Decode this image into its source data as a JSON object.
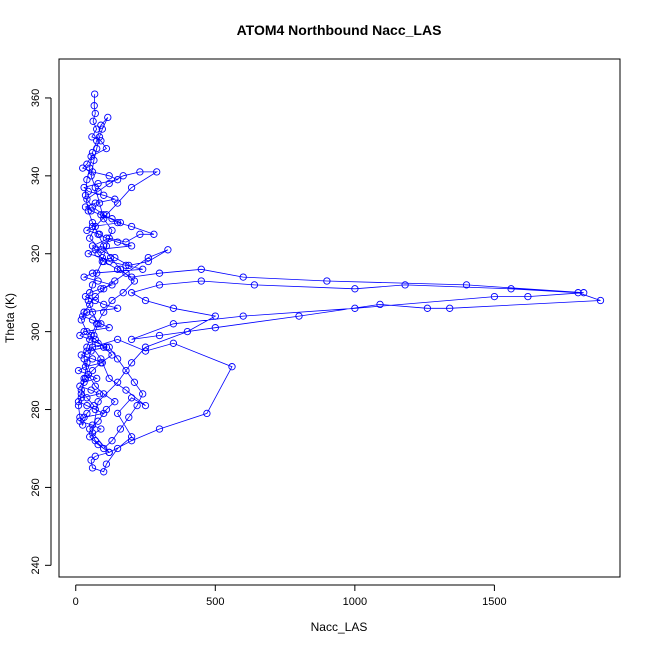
{
  "chart_data": {
    "type": "scatter",
    "title": "ATOM4 Northbound Nacc_LAS",
    "xlabel": "Nacc_LAS",
    "ylabel": "Theta (K)",
    "xlim": [
      -60,
      1950
    ],
    "ylim": [
      237,
      370
    ],
    "x_ticks": [
      0,
      500,
      1000,
      1500
    ],
    "y_ticks": [
      240,
      260,
      280,
      300,
      320,
      340,
      360
    ],
    "grid": false,
    "series_color": "#0000ff",
    "markers": "open-circle",
    "connected": true,
    "series": [
      {
        "points": [
          [
            68,
            361
          ],
          [
            66,
            358
          ],
          [
            70,
            356
          ],
          [
            62,
            354
          ],
          [
            75,
            352
          ],
          [
            58,
            350
          ],
          [
            90,
            349
          ],
          [
            110,
            347
          ],
          [
            55,
            345
          ],
          [
            40,
            343
          ],
          [
            25,
            342
          ],
          [
            60,
            341
          ],
          [
            120,
            340
          ],
          [
            150,
            339
          ],
          [
            80,
            338
          ],
          [
            30,
            337
          ],
          [
            45,
            336
          ],
          [
            100,
            335
          ],
          [
            140,
            334
          ],
          [
            70,
            333
          ],
          [
            35,
            332
          ],
          [
            55,
            331
          ],
          [
            90,
            330
          ],
          [
            130,
            329
          ],
          [
            160,
            328
          ],
          [
            60,
            327
          ],
          [
            40,
            326
          ],
          [
            85,
            325
          ],
          [
            110,
            324
          ],
          [
            150,
            323
          ],
          [
            200,
            322
          ],
          [
            70,
            321
          ],
          [
            45,
            320
          ],
          [
            95,
            319
          ],
          [
            120,
            318
          ],
          [
            180,
            317
          ],
          [
            240,
            316
          ],
          [
            60,
            315
          ],
          [
            30,
            314
          ],
          [
            80,
            313
          ],
          [
            130,
            312
          ],
          [
            90,
            311
          ],
          [
            50,
            310
          ],
          [
            35,
            309
          ],
          [
            70,
            308
          ],
          [
            100,
            307
          ],
          [
            150,
            306
          ],
          [
            40,
            305
          ],
          [
            25,
            304
          ],
          [
            60,
            303
          ],
          [
            90,
            302
          ],
          [
            120,
            301
          ],
          [
            30,
            300
          ],
          [
            15,
            299
          ],
          [
            50,
            298
          ],
          [
            80,
            297
          ],
          [
            110,
            296
          ],
          [
            40,
            295
          ],
          [
            20,
            294
          ],
          [
            60,
            293
          ],
          [
            95,
            292
          ],
          [
            35,
            291
          ],
          [
            10,
            290
          ],
          [
            45,
            289
          ],
          [
            75,
            288
          ],
          [
            30,
            287
          ],
          [
            15,
            286
          ],
          [
            55,
            285
          ],
          [
            85,
            284
          ],
          [
            20,
            283
          ],
          [
            10,
            282
          ],
          [
            40,
            281
          ],
          [
            70,
            280
          ],
          [
            100,
            279
          ],
          [
            30,
            278
          ],
          [
            15,
            277
          ],
          [
            60,
            276
          ],
          [
            90,
            275
          ],
          [
            50,
            273
          ],
          [
            80,
            271
          ],
          [
            120,
            269
          ],
          [
            70,
            268
          ],
          [
            55,
            267
          ],
          [
            60,
            265
          ],
          [
            100,
            264
          ],
          [
            110,
            266
          ],
          [
            150,
            270
          ],
          [
            200,
            273
          ],
          [
            150,
            279
          ],
          [
            200,
            283
          ],
          [
            250,
            281
          ],
          [
            180,
            285
          ],
          [
            120,
            288
          ],
          [
            90,
            293
          ],
          [
            60,
            296
          ],
          [
            150,
            298
          ],
          [
            250,
            295
          ],
          [
            350,
            297
          ],
          [
            560,
            291
          ],
          [
            470,
            279
          ],
          [
            300,
            275
          ],
          [
            200,
            272
          ],
          [
            120,
            269
          ],
          [
            60,
            274
          ],
          [
            80,
            282
          ],
          [
            150,
            287
          ],
          [
            200,
            292
          ],
          [
            250,
            296
          ],
          [
            400,
            300
          ],
          [
            500,
            304
          ],
          [
            350,
            306
          ],
          [
            250,
            308
          ],
          [
            200,
            310
          ],
          [
            300,
            312
          ],
          [
            450,
            313
          ],
          [
            640,
            312
          ],
          [
            1000,
            311
          ],
          [
            1180,
            312
          ],
          [
            1560,
            311
          ],
          [
            1800,
            310
          ],
          [
            1880,
            308
          ],
          [
            1340,
            306
          ],
          [
            1260,
            306
          ],
          [
            1090,
            307
          ],
          [
            800,
            304
          ],
          [
            500,
            301
          ],
          [
            300,
            299
          ],
          [
            200,
            298
          ],
          [
            350,
            302
          ],
          [
            600,
            304
          ],
          [
            1000,
            306
          ],
          [
            1500,
            309
          ],
          [
            1620,
            309
          ],
          [
            1820,
            310
          ],
          [
            1400,
            312
          ],
          [
            900,
            313
          ],
          [
            600,
            314
          ],
          [
            450,
            316
          ],
          [
            300,
            315
          ],
          [
            200,
            314
          ],
          [
            150,
            316
          ],
          [
            100,
            318
          ],
          [
            80,
            320
          ],
          [
            60,
            322
          ],
          [
            120,
            324
          ],
          [
            180,
            323
          ],
          [
            230,
            325
          ],
          [
            280,
            325
          ],
          [
            200,
            327
          ],
          [
            150,
            328
          ],
          [
            100,
            330
          ],
          [
            60,
            332
          ],
          [
            40,
            334
          ],
          [
            80,
            336
          ],
          [
            120,
            338
          ],
          [
            170,
            340
          ],
          [
            230,
            341
          ],
          [
            290,
            341
          ],
          [
            200,
            337
          ],
          [
            150,
            333
          ],
          [
            110,
            330
          ],
          [
            70,
            327
          ],
          [
            50,
            324
          ],
          [
            90,
            321
          ],
          [
            140,
            319
          ],
          [
            190,
            317
          ],
          [
            260,
            318
          ],
          [
            330,
            321
          ],
          [
            260,
            319
          ],
          [
            180,
            315
          ],
          [
            140,
            313
          ],
          [
            100,
            311
          ],
          [
            70,
            309
          ],
          [
            50,
            307
          ],
          [
            30,
            305
          ],
          [
            20,
            303
          ],
          [
            40,
            300
          ],
          [
            70,
            298
          ],
          [
            100,
            296
          ],
          [
            130,
            294
          ],
          [
            90,
            292
          ],
          [
            60,
            290
          ],
          [
            35,
            288
          ],
          [
            20,
            285
          ],
          [
            40,
            283
          ],
          [
            65,
            281
          ],
          [
            40,
            279
          ],
          [
            25,
            276
          ],
          [
            15,
            278
          ],
          [
            10,
            281
          ],
          [
            20,
            284
          ],
          [
            30,
            288
          ],
          [
            40,
            292
          ],
          [
            55,
            295
          ],
          [
            65,
            299
          ],
          [
            80,
            302
          ],
          [
            60,
            305
          ],
          [
            45,
            308
          ],
          [
            60,
            312
          ],
          [
            75,
            315
          ],
          [
            95,
            318
          ],
          [
            110,
            322
          ],
          [
            130,
            326
          ],
          [
            100,
            329
          ],
          [
            85,
            333
          ],
          [
            70,
            337
          ],
          [
            55,
            340
          ],
          [
            65,
            344
          ],
          [
            75,
            347
          ],
          [
            85,
            350
          ],
          [
            95,
            352
          ],
          [
            115,
            355
          ],
          [
            90,
            353
          ],
          [
            75,
            349
          ],
          [
            60,
            346
          ],
          [
            50,
            342
          ],
          [
            40,
            339
          ],
          [
            35,
            335
          ],
          [
            45,
            331
          ],
          [
            60,
            328
          ],
          [
            80,
            325
          ],
          [
            100,
            322
          ],
          [
            125,
            319
          ],
          [
            160,
            316
          ],
          [
            210,
            313
          ],
          [
            170,
            310
          ],
          [
            130,
            308
          ],
          [
            100,
            305
          ],
          [
            75,
            302
          ],
          [
            55,
            299
          ],
          [
            40,
            296
          ],
          [
            30,
            293
          ],
          [
            45,
            289
          ],
          [
            70,
            286
          ],
          [
            100,
            284
          ],
          [
            140,
            282
          ],
          [
            110,
            280
          ],
          [
            80,
            277
          ],
          [
            50,
            275
          ],
          [
            70,
            272
          ],
          [
            100,
            270
          ],
          [
            130,
            272
          ],
          [
            160,
            275
          ],
          [
            190,
            278
          ],
          [
            220,
            281
          ],
          [
            240,
            284
          ],
          [
            210,
            287
          ],
          [
            180,
            290
          ],
          [
            150,
            293
          ],
          [
            120,
            296
          ]
        ]
      }
    ]
  }
}
